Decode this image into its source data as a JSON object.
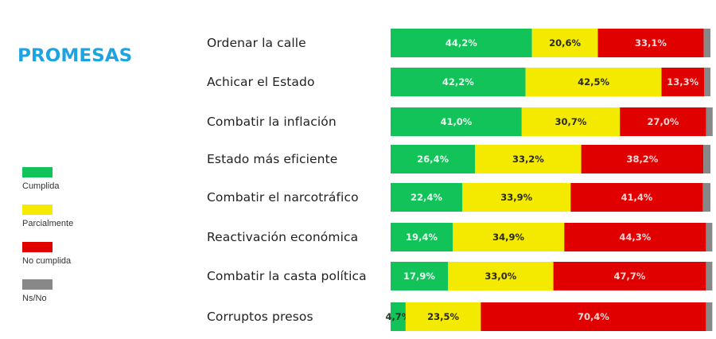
{
  "chart_data": {
    "type": "bar",
    "orientation": "horizontal",
    "stacked": true,
    "title": "PROMESAS",
    "xlabel": "",
    "ylabel": "",
    "xlim": [
      0,
      100
    ],
    "grid": false,
    "legend_position": "left",
    "categories": [
      "Ordenar la calle",
      "Achicar el Estado",
      "Combatir la inflación",
      "Estado más eficiente",
      "Combatir el narcotráfico",
      "Reactivación económica",
      "Combatir la casta política",
      "Corruptos presos"
    ],
    "series": [
      {
        "name": "Cumplida",
        "color": "#12c35a",
        "label_color": "#e8fff0",
        "values": [
          44.2,
          42.2,
          41.0,
          26.4,
          22.4,
          19.4,
          17.9,
          4.7
        ],
        "labels": [
          "44,2%",
          "42,2%",
          "41,0%",
          "26,4%",
          "22,4%",
          "19,4%",
          "17,9%",
          "4,7%"
        ]
      },
      {
        "name": "Parcialmente",
        "color": "#f3ea00",
        "label_color": "#2a2a10",
        "values": [
          20.6,
          42.5,
          30.7,
          33.2,
          33.9,
          34.9,
          33.0,
          23.5
        ],
        "labels": [
          "20,6%",
          "42,5%",
          "30,7%",
          "33,2%",
          "33,9%",
          "34,9%",
          "33,0%",
          "23,5%"
        ]
      },
      {
        "name": "No cumplida",
        "color": "#e10000",
        "label_color": "#ffd6d6",
        "values": [
          33.1,
          13.3,
          27.0,
          38.2,
          41.4,
          44.3,
          47.7,
          70.4
        ],
        "labels": [
          "33,1%",
          "13,3%",
          "27,0%",
          "38,2%",
          "41,4%",
          "44,3%",
          "47,7%",
          "70,4%"
        ]
      },
      {
        "name": "Ns/No",
        "color": "#888888",
        "label_color": "#ffffff",
        "values": [
          2.1,
          2.0,
          1.3,
          2.2,
          2.3,
          1.4,
          1.4,
          1.4
        ],
        "labels": []
      }
    ],
    "title_color": "#1ea3e2"
  }
}
